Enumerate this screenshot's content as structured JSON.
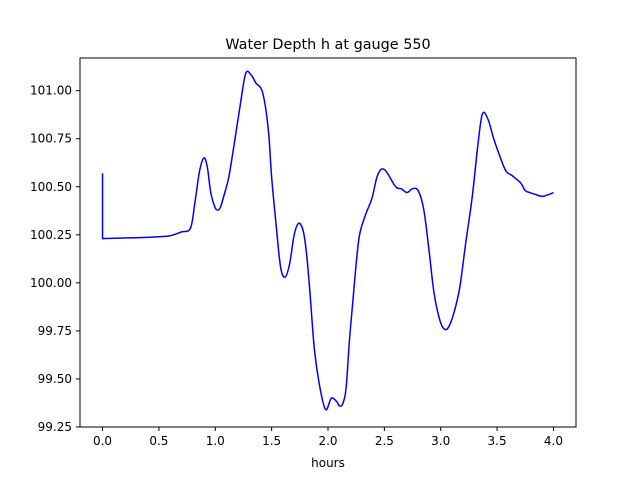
{
  "chart_data": {
    "type": "line",
    "title": "Water Depth h at gauge 550",
    "xlabel": "hours",
    "ylabel": "",
    "xlim": [
      -0.2,
      4.2
    ],
    "ylim": [
      99.25,
      101.17
    ],
    "grid": false,
    "legend": "none",
    "x_ticks": [
      0.0,
      0.5,
      1.0,
      1.5,
      2.0,
      2.5,
      3.0,
      3.5,
      4.0
    ],
    "x_tick_labels": [
      "0.0",
      "0.5",
      "1.0",
      "1.5",
      "2.0",
      "2.5",
      "3.0",
      "3.5",
      "4.0"
    ],
    "y_ticks": [
      99.25,
      99.5,
      99.75,
      100.0,
      100.25,
      100.5,
      100.75,
      101.0
    ],
    "y_tick_labels": [
      "99.25",
      "99.50",
      "99.75",
      "100.00",
      "100.25",
      "100.50",
      "100.75",
      "101.00"
    ],
    "series": [
      {
        "color": "#0000ff",
        "x": [
          0.0,
          0.0,
          0.0,
          0.1,
          0.3,
          0.5,
          0.6,
          0.7,
          0.78,
          0.82,
          0.86,
          0.9,
          0.93,
          0.96,
          1.0,
          1.03,
          1.05,
          1.08,
          1.12,
          1.17,
          1.22,
          1.27,
          1.32,
          1.36,
          1.42,
          1.47,
          1.5,
          1.54,
          1.58,
          1.62,
          1.66,
          1.7,
          1.74,
          1.78,
          1.81,
          1.84,
          1.88,
          1.93,
          1.98,
          2.03,
          2.08,
          2.1,
          2.13,
          2.16,
          2.19,
          2.22,
          2.25,
          2.28,
          2.33,
          2.39,
          2.44,
          2.5,
          2.6,
          2.65,
          2.7,
          2.75,
          2.8,
          2.85,
          2.9,
          2.94,
          2.99,
          3.03,
          3.07,
          3.12,
          3.17,
          3.22,
          3.28,
          3.33,
          3.37,
          3.42,
          3.47,
          3.53,
          3.58,
          3.63,
          3.67,
          3.71,
          3.75,
          3.79,
          3.84,
          3.9,
          3.96,
          4.0
        ],
        "y": [
          100.57,
          100.23,
          100.23,
          100.232,
          100.235,
          100.24,
          100.245,
          100.265,
          100.285,
          100.42,
          100.58,
          100.65,
          100.6,
          100.47,
          100.39,
          100.38,
          100.4,
          100.46,
          100.55,
          100.73,
          100.92,
          101.09,
          101.08,
          101.04,
          100.99,
          100.8,
          100.55,
          100.3,
          100.08,
          100.03,
          100.1,
          100.25,
          100.31,
          100.27,
          100.15,
          99.95,
          99.65,
          99.45,
          99.34,
          99.4,
          99.38,
          99.36,
          99.37,
          99.45,
          99.7,
          99.9,
          100.1,
          100.25,
          100.35,
          100.44,
          100.56,
          100.59,
          100.5,
          100.49,
          100.47,
          100.49,
          100.48,
          100.38,
          100.15,
          99.95,
          99.81,
          99.76,
          99.77,
          99.85,
          99.98,
          100.2,
          100.45,
          100.72,
          100.88,
          100.85,
          100.75,
          100.65,
          100.58,
          100.56,
          100.54,
          100.52,
          100.48,
          100.47,
          100.46,
          100.45,
          100.46,
          100.47
        ]
      }
    ]
  }
}
